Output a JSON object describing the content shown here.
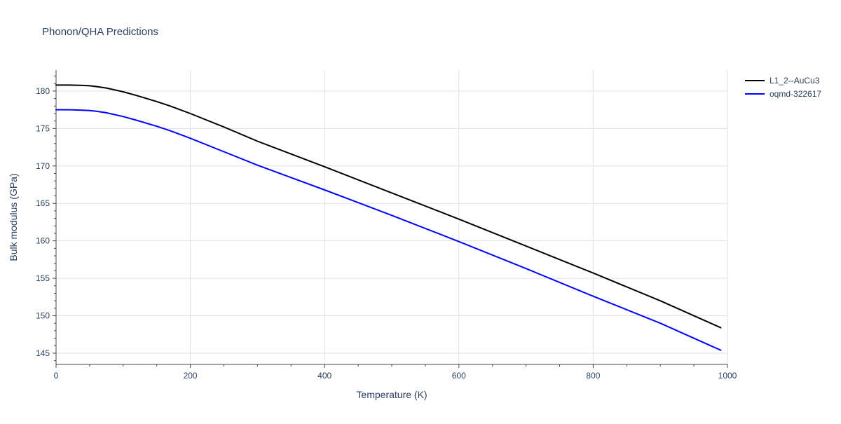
{
  "chart_data": {
    "type": "line",
    "title": "Phonon/QHA Predictions",
    "xlabel": "Temperature (K)",
    "ylabel": "Bulk modulus (GPa)",
    "xlim": [
      0,
      1000
    ],
    "ylim": [
      143.5,
      182.8
    ],
    "xticks": [
      0,
      200,
      400,
      600,
      800,
      1000
    ],
    "yticks": [
      145,
      150,
      155,
      160,
      165,
      170,
      175,
      180
    ],
    "grid": true,
    "legend_position": "top-right",
    "series": [
      {
        "name": "L1_2--AuCu3",
        "color": "#000000",
        "x": [
          0,
          20,
          40,
          50,
          60,
          75,
          100,
          120,
          150,
          170,
          200,
          250,
          300,
          400,
          500,
          600,
          700,
          800,
          900,
          990
        ],
        "y": [
          180.8,
          180.8,
          180.75,
          180.7,
          180.6,
          180.4,
          179.9,
          179.4,
          178.6,
          178.0,
          177.0,
          175.2,
          173.3,
          169.9,
          166.4,
          162.9,
          159.3,
          155.7,
          152.0,
          148.4
        ]
      },
      {
        "name": "oqmd-322617",
        "color": "#0000ff",
        "x": [
          0,
          20,
          40,
          50,
          60,
          75,
          100,
          120,
          150,
          170,
          200,
          250,
          300,
          400,
          500,
          600,
          700,
          800,
          900,
          990
        ],
        "y": [
          177.5,
          177.5,
          177.45,
          177.4,
          177.3,
          177.1,
          176.6,
          176.1,
          175.3,
          174.7,
          173.7,
          171.9,
          170.1,
          166.8,
          163.4,
          159.9,
          156.3,
          152.6,
          149.0,
          145.4
        ]
      }
    ]
  }
}
